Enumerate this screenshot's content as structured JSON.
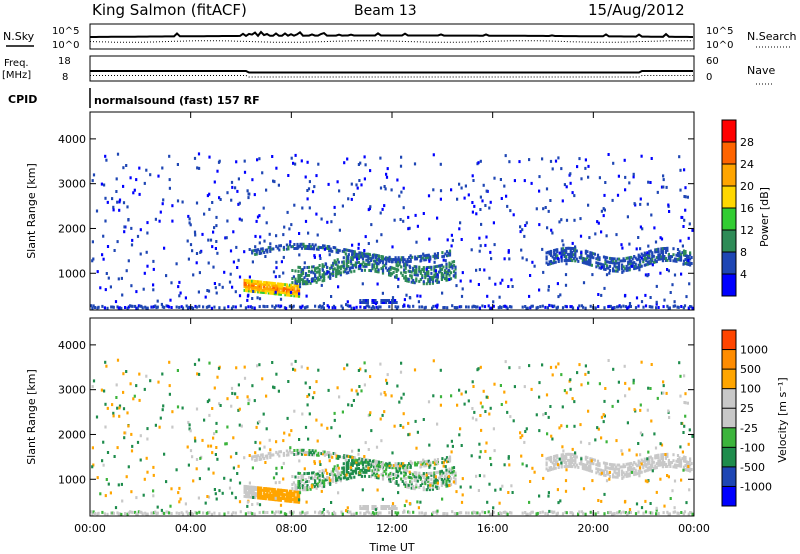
{
  "header": {
    "station": "King Salmon (fitACF)",
    "beam": "Beam 13",
    "date": "15/Aug/2012"
  },
  "status_panels": {
    "nsky": {
      "label": "N.Sky",
      "right_label": "N.Search",
      "left_ticks": [
        "10^5",
        "10^0"
      ],
      "right_ticks": [
        "10^5",
        "10^0"
      ]
    },
    "freq": {
      "label_lines": [
        "Freq.",
        "[MHz]"
      ],
      "left_ticks": [
        "18",
        "8"
      ],
      "right_label": "Nave",
      "right_ticks": [
        "60",
        "0"
      ]
    },
    "cpid": {
      "label": "CPID",
      "text": "normalsound (fast) 157 RF"
    }
  },
  "colors": {
    "power_scale": [
      "#0000ff",
      "#1e46b4",
      "#2e8b57",
      "#32cd32",
      "#ffd700",
      "#ffa500",
      "#ff6400",
      "#ff0000"
    ],
    "velocity_scale": [
      "#ff0000",
      "#ff4500",
      "#ff8c00",
      "#ffa500",
      "#c8c8c8",
      "#c8c8c8",
      "#3cb43c",
      "#1e8c4c",
      "#1e46b4",
      "#0000ff"
    ]
  },
  "chart_data": [
    {
      "type": "heatmap",
      "panel": "power",
      "ylabel": "Slant Range [km]",
      "yticks": [
        1000,
        2000,
        3000,
        4000
      ],
      "ylim": [
        180,
        4600
      ],
      "xlim": [
        0,
        24
      ],
      "colorbar_label": "Power [dB]",
      "colorbar_ticks": [
        "4",
        "8",
        "12",
        "16",
        "20",
        "24",
        "28"
      ],
      "clim": [
        0,
        32
      ]
    },
    {
      "type": "heatmap",
      "panel": "velocity",
      "ylabel": "Slant Range [km]",
      "yticks": [
        1000,
        2000,
        3000,
        4000
      ],
      "ylim": [
        180,
        4600
      ],
      "xlim": [
        0,
        24
      ],
      "xticks": [
        "00:00",
        "04:00",
        "08:00",
        "12:00",
        "16:00",
        "20:00",
        "00:00"
      ],
      "xlabel": "Time UT",
      "colorbar_label": "Velocity [m s⁻¹]",
      "colorbar_ticks": [
        "1000",
        "500",
        "100",
        "25",
        "-25",
        "-100",
        "-500",
        "-1000"
      ]
    }
  ]
}
